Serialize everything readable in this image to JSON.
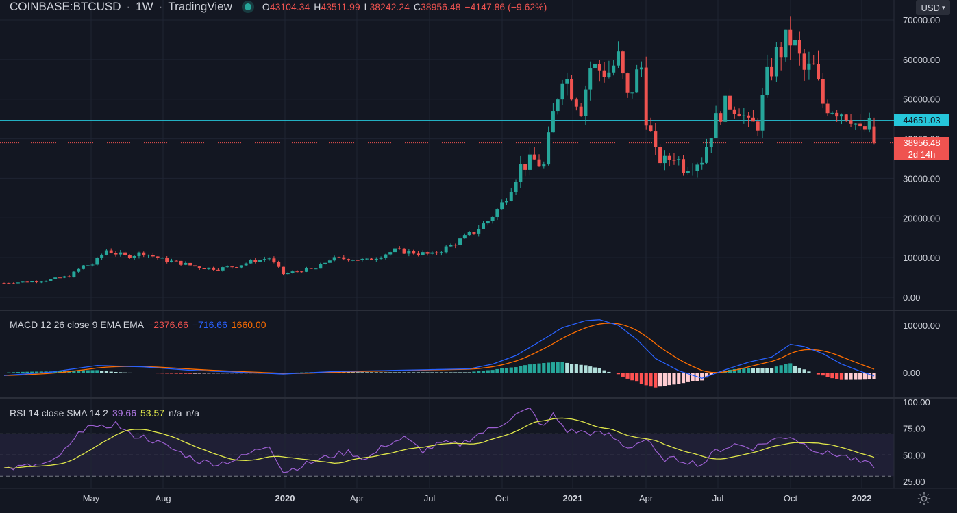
{
  "header": {
    "symbol": "COINBASE:BTCUSD",
    "interval": "1W",
    "source": "TradingView",
    "ohlc": [
      {
        "k": "O",
        "v": "43104.34"
      },
      {
        "k": "H",
        "v": "43511.99"
      },
      {
        "k": "L",
        "v": "38242.24"
      },
      {
        "k": "C",
        "v": "38956.48"
      }
    ],
    "change": "−4147.86 (−9.62%)"
  },
  "currency": "USD",
  "price_axis": {
    "ticks": [
      "70000.00",
      "60000.00",
      "50000.00",
      "40000.00",
      "30000.00",
      "20000.00",
      "10000.00",
      "0.00"
    ]
  },
  "price_line": {
    "value": 44651.03,
    "label": "44651.03",
    "color": "#26c6da"
  },
  "last_price": {
    "value": 38956.48,
    "label": "38956.48",
    "countdown": "2d 14h",
    "color": "#ef5350"
  },
  "macd": {
    "legend_name": "MACD 12 26 close 9 EMA EMA",
    "hist_label": "−2376.66",
    "macd_label": "−716.66",
    "signal_label": "1660.00",
    "ticks": [
      "10000.00",
      "0.00"
    ],
    "colors": {
      "macd": "#2962ff",
      "signal": "#ff6d00"
    }
  },
  "rsi": {
    "legend_name": "RSI 14 close SMA 14 2",
    "rsi_label": "39.66",
    "sma_label": "53.57",
    "extra1": "n/a",
    "extra2": "n/a",
    "ticks": [
      "100.00",
      "75.00",
      "50.00",
      "25.00"
    ],
    "colors": {
      "rsi": "#9c5fd1",
      "sma": "#e1e84a"
    }
  },
  "time_axis": [
    "May",
    "Aug",
    "2020",
    "Apr",
    "Jul",
    "Oct",
    "2021",
    "Apr",
    "Jul",
    "Oct",
    "2022"
  ],
  "chart_data": {
    "type": "candlestick",
    "interval": "1W",
    "up_color": "#26a69a",
    "down_color": "#ef5350",
    "price_range": [
      0,
      70000
    ],
    "rsi_range": [
      25,
      100
    ],
    "macd_range": [
      -3000,
      11000
    ],
    "keypoints": [
      [
        0,
        3600
      ],
      [
        8,
        4100
      ],
      [
        14,
        5300
      ],
      [
        17,
        7900
      ],
      [
        19,
        8300
      ],
      [
        22,
        11900
      ],
      [
        26,
        10300
      ],
      [
        30,
        11200
      ],
      [
        34,
        9500
      ],
      [
        38,
        8600
      ],
      [
        42,
        7500
      ],
      [
        46,
        7200
      ],
      [
        50,
        7900
      ],
      [
        54,
        9300
      ],
      [
        57,
        9900
      ],
      [
        60,
        5900
      ],
      [
        64,
        6800
      ],
      [
        67,
        7200
      ],
      [
        70,
        9600
      ],
      [
        74,
        9800
      ],
      [
        78,
        9300
      ],
      [
        82,
        11000
      ],
      [
        84,
        11800
      ],
      [
        88,
        11300
      ],
      [
        92,
        10700
      ],
      [
        96,
        13100
      ],
      [
        100,
        15700
      ],
      [
        104,
        19300
      ],
      [
        107,
        23500
      ],
      [
        111,
        33000
      ],
      [
        114,
        34500
      ],
      [
        116,
        33000
      ],
      [
        118,
        46000
      ],
      [
        120,
        57000
      ],
      [
        124,
        48000
      ],
      [
        126,
        58000
      ],
      [
        130,
        57000
      ],
      [
        132,
        60000
      ],
      [
        134,
        50000
      ],
      [
        136,
        56000
      ],
      [
        137,
        58000
      ],
      [
        138,
        46000
      ],
      [
        140,
        36000
      ],
      [
        142,
        34000
      ],
      [
        144,
        36000
      ],
      [
        146,
        33000
      ],
      [
        148,
        34000
      ],
      [
        150,
        35000
      ],
      [
        152,
        42000
      ],
      [
        154,
        47000
      ],
      [
        156,
        49000
      ],
      [
        158,
        48000
      ],
      [
        160,
        43000
      ],
      [
        162,
        44000
      ],
      [
        164,
        55000
      ],
      [
        166,
        61000
      ],
      [
        168,
        64000
      ],
      [
        169,
        65000
      ],
      [
        170,
        63000
      ],
      [
        172,
        57000
      ],
      [
        174,
        57500
      ],
      [
        176,
        49000
      ],
      [
        178,
        48000
      ],
      [
        180,
        47000
      ],
      [
        182,
        46000
      ],
      [
        184,
        41500
      ],
      [
        186,
        43000
      ],
      [
        187,
        38956
      ]
    ],
    "rsi_keypoints": [
      [
        0,
        37
      ],
      [
        10,
        42
      ],
      [
        14,
        58
      ],
      [
        18,
        80
      ],
      [
        20,
        74
      ],
      [
        24,
        80
      ],
      [
        27,
        69
      ],
      [
        30,
        67
      ],
      [
        34,
        60
      ],
      [
        38,
        52
      ],
      [
        42,
        44
      ],
      [
        46,
        42
      ],
      [
        50,
        46
      ],
      [
        54,
        54
      ],
      [
        57,
        60
      ],
      [
        60,
        34
      ],
      [
        64,
        40
      ],
      [
        70,
        49
      ],
      [
        74,
        53
      ],
      [
        78,
        46
      ],
      [
        82,
        60
      ],
      [
        86,
        66
      ],
      [
        90,
        54
      ],
      [
        94,
        61
      ],
      [
        98,
        60
      ],
      [
        102,
        70
      ],
      [
        106,
        77
      ],
      [
        110,
        88
      ],
      [
        113,
        93
      ],
      [
        116,
        76
      ],
      [
        118,
        88
      ],
      [
        121,
        73
      ],
      [
        126,
        71
      ],
      [
        130,
        69
      ],
      [
        134,
        57
      ],
      [
        138,
        65
      ],
      [
        141,
        47
      ],
      [
        146,
        45
      ],
      [
        150,
        41
      ],
      [
        153,
        54
      ],
      [
        157,
        60
      ],
      [
        161,
        57
      ],
      [
        165,
        64
      ],
      [
        169,
        68
      ],
      [
        172,
        60
      ],
      [
        176,
        52
      ],
      [
        180,
        50
      ],
      [
        184,
        43
      ],
      [
        187,
        40
      ]
    ],
    "macd_keypoints": [
      [
        0,
        -600
      ],
      [
        10,
        100
      ],
      [
        20,
        1500
      ],
      [
        30,
        1200
      ],
      [
        40,
        500
      ],
      [
        50,
        100
      ],
      [
        60,
        -300
      ],
      [
        70,
        200
      ],
      [
        80,
        400
      ],
      [
        90,
        600
      ],
      [
        100,
        800
      ],
      [
        105,
        1800
      ],
      [
        110,
        3600
      ],
      [
        115,
        6500
      ],
      [
        120,
        9500
      ],
      [
        125,
        11000
      ],
      [
        128,
        11200
      ],
      [
        132,
        10000
      ],
      [
        136,
        7000
      ],
      [
        140,
        3000
      ],
      [
        145,
        400
      ],
      [
        150,
        -1200
      ],
      [
        155,
        600
      ],
      [
        160,
        2200
      ],
      [
        165,
        3300
      ],
      [
        169,
        6000
      ],
      [
        172,
        5500
      ],
      [
        176,
        4000
      ],
      [
        180,
        1800
      ],
      [
        184,
        300
      ],
      [
        187,
        -700
      ]
    ]
  }
}
